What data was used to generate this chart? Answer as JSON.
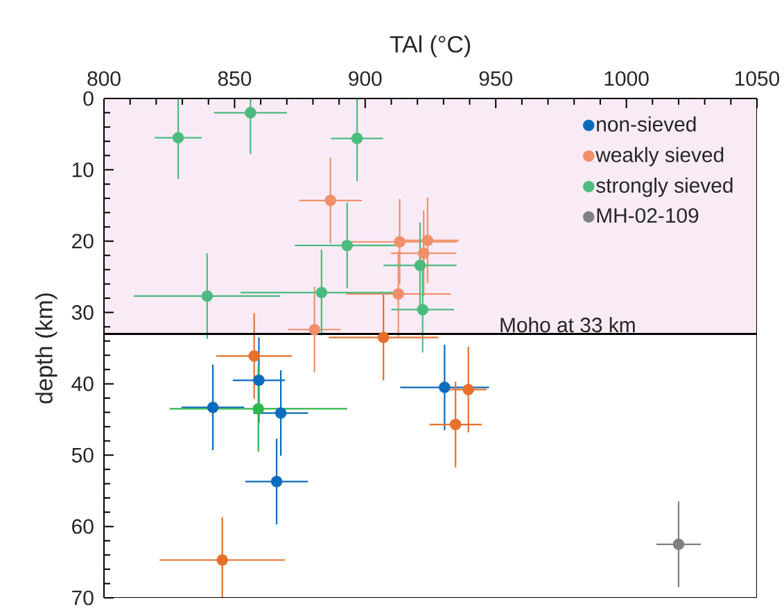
{
  "chart_data": {
    "type": "scatter",
    "xlabel": "TAl (°C)",
    "ylabel": "depth (km)",
    "xlim": [
      800,
      1050
    ],
    "xticks": [
      800,
      850,
      900,
      950,
      1000,
      1050
    ],
    "ylim": [
      70,
      0
    ],
    "yticks": [
      0,
      10,
      20,
      30,
      40,
      50,
      60,
      70
    ],
    "marker": "circle",
    "legend": "top right",
    "grid": false,
    "bands": [
      {
        "axis": "y",
        "from": 0,
        "to": 33,
        "color": "#f9ebf6"
      }
    ],
    "ref_lines": [
      {
        "axis": "y",
        "value": 33,
        "label": "Moho at 33 km",
        "color": "#000000"
      }
    ],
    "series": [
      {
        "name": "non-sieved",
        "color": "#0b6bbd",
        "x": [
          859.3,
          841.7,
          867.7,
          866.1,
          930.4
        ],
        "values": [
          39.5,
          43.3,
          44.1,
          53.7,
          40.5
        ],
        "xerrors": [
          10,
          12,
          10.5,
          12,
          17
        ],
        "errors": [
          6,
          6,
          6,
          6,
          6
        ]
      },
      {
        "name": "weakly sieved",
        "color": "#f0906a",
        "x": [
          886.7,
          913.2,
          923.9,
          922.4,
          912.7,
          880.6
        ],
        "values": [
          14.3,
          20.1,
          19.9,
          21.7,
          27.4,
          32.4
        ],
        "xerrors": [
          12,
          22,
          12,
          12.5,
          20,
          10
        ],
        "errors": [
          6,
          6,
          6,
          6,
          6,
          6
        ]
      },
      {
        "name": "strongly sieved",
        "color": "#4cbb7f",
        "x": [
          828.4,
          856.1,
          896.9,
          893.1,
          921,
          839.5,
          883.3,
          922
        ],
        "values": [
          5.5,
          2.0,
          5.6,
          20.6,
          23.4,
          27.7,
          27.2,
          29.6
        ],
        "xerrors": [
          9,
          14,
          10,
          20,
          14,
          28,
          31,
          12
        ],
        "errors": [
          5.8,
          5.8,
          6,
          6,
          6,
          6,
          6,
          6
        ]
      },
      {
        "name": "MH-02-109",
        "color": "#808080",
        "x": [
          1020
        ],
        "values": [
          62.5
        ],
        "xerrors": [
          8.5
        ],
        "errors": [
          6
        ]
      },
      {
        "color": "#e8702a",
        "x": [
          907,
          857.5,
          845.3,
          939.5,
          934.6
        ],
        "values": [
          33.5,
          36.1,
          64.7,
          40.8,
          45.7
        ],
        "xerrors": [
          21,
          14.5,
          24,
          7,
          10
        ],
        "errors": [
          6,
          6,
          6,
          6,
          6
        ]
      },
      {
        "color": "#2db84a",
        "x": [
          859.1
        ],
        "values": [
          43.5
        ],
        "xerrors": [
          34
        ],
        "errors": [
          6
        ]
      }
    ]
  }
}
